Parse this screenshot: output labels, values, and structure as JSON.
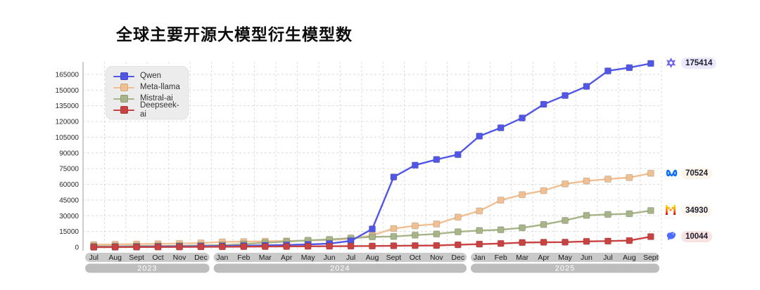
{
  "page": {
    "title": "全球主要开源大模型衍生模型数"
  },
  "legend": {
    "items": [
      {
        "label": "Qwen",
        "color": "#5156e5"
      },
      {
        "label": "Meta-llama",
        "color": "#f0bf92"
      },
      {
        "label": "Mistral-ai",
        "color": "#a6b488"
      },
      {
        "label": "Deepseek-ai",
        "color": "#c94242"
      }
    ]
  },
  "end_labels": [
    {
      "series": "Qwen",
      "value": "175414",
      "icon": "qwen-logo-icon",
      "bg": "#eae8fa"
    },
    {
      "series": "Meta-llama",
      "value": "70524",
      "icon": "meta-logo-icon",
      "bg": "#fdf4ea"
    },
    {
      "series": "Mistral-ai",
      "value": "34930",
      "icon": "mistral-logo-icon",
      "bg": "#fdf6ee"
    },
    {
      "series": "Deepseek-ai",
      "value": "10044",
      "icon": "deepseek-logo-icon",
      "bg": "#f9e2e2"
    }
  ],
  "chart_data": {
    "type": "line",
    "title": "全球主要开源大模型衍生模型数",
    "x": [
      "Jul",
      "Aug",
      "Sept",
      "Oct",
      "Nov",
      "Dec",
      "Jan",
      "Feb",
      "Mar",
      "Apr",
      "May",
      "Jun",
      "Jul",
      "Aug",
      "Sept",
      "Oct",
      "Nov",
      "Dec",
      "Jan",
      "Feb",
      "Mar",
      "Apr",
      "May",
      "Jun",
      "Jul",
      "Aug",
      "Sept"
    ],
    "year_groups": [
      {
        "year": "2023",
        "start": 0,
        "count": 6
      },
      {
        "year": "2024",
        "start": 6,
        "count": 12
      },
      {
        "year": "2025",
        "start": 18,
        "count": 9
      }
    ],
    "yticks": [
      0,
      15000,
      30000,
      45000,
      60000,
      75000,
      90000,
      105000,
      120000,
      135000,
      150000,
      165000
    ],
    "ylim": [
      0,
      177000
    ],
    "grid": true,
    "legend_position": "top-left",
    "series": [
      {
        "name": "Qwen",
        "color": "#5156e5",
        "values": [
          100,
          200,
          350,
          500,
          700,
          900,
          1100,
          1400,
          1700,
          2100,
          2600,
          3400,
          6000,
          17400,
          67000,
          78300,
          83700,
          88400,
          106000,
          114000,
          123400,
          136400,
          144800,
          153500,
          168300,
          171400,
          175414
        ]
      },
      {
        "name": "Meta-llama",
        "color": "#f0bf92",
        "values": [
          2400,
          2700,
          2900,
          3200,
          3500,
          4000,
          5000,
          5300,
          5600,
          5900,
          6300,
          6800,
          8000,
          11300,
          17800,
          20400,
          22100,
          28700,
          34600,
          44900,
          50100,
          54000,
          60400,
          63200,
          65000,
          66500,
          70524
        ]
      },
      {
        "name": "Mistral-ai",
        "color": "#a6b488",
        "values": [
          800,
          900,
          1000,
          1100,
          1300,
          1600,
          2000,
          3000,
          4200,
          5300,
          6500,
          7400,
          8700,
          9800,
          10200,
          11500,
          12600,
          14700,
          15900,
          16600,
          18500,
          21600,
          25500,
          30300,
          31300,
          31900,
          34930
        ]
      },
      {
        "name": "Deepseek-ai",
        "color": "#c94242",
        "values": [
          0,
          50,
          100,
          150,
          200,
          300,
          400,
          500,
          600,
          700,
          800,
          900,
          1000,
          1100,
          1300,
          1500,
          1600,
          2300,
          2900,
          3500,
          4400,
          4700,
          4800,
          5500,
          5800,
          6300,
          10044
        ]
      }
    ]
  }
}
